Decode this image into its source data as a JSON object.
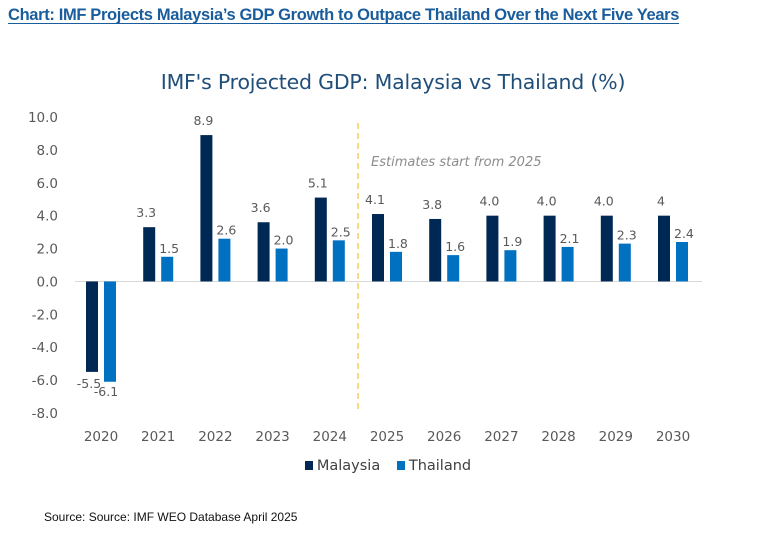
{
  "headline": "Chart: IMF Projects Malaysia’s GDP Growth to Outpace Thailand Over the Next Five Years",
  "source": "Source: Source: IMF WEO Database April 2025",
  "chart_data": {
    "type": "bar",
    "title": "IMF's Projected GDP: Malaysia vs Thailand (%)",
    "xlabel": "",
    "ylabel": "",
    "categories": [
      "2020",
      "2021",
      "2022",
      "2023",
      "2024",
      "2025",
      "2026",
      "2027",
      "2028",
      "2029",
      "2030"
    ],
    "series": [
      {
        "name": "Malaysia",
        "color": "#002855",
        "values": [
          -5.5,
          3.3,
          8.9,
          3.6,
          5.1,
          4.1,
          3.8,
          4.0,
          4.0,
          4.0,
          4.0
        ],
        "labels": [
          "-5.5",
          "3.3",
          "8.9",
          "3.6",
          "5.1",
          "4.1",
          "3.8",
          "4.0",
          "4.0",
          "4.0",
          "4"
        ]
      },
      {
        "name": "Thailand",
        "color": "#0070c0",
        "values": [
          -6.1,
          1.5,
          2.6,
          2.0,
          2.5,
          1.8,
          1.6,
          1.9,
          2.1,
          2.3,
          2.4
        ],
        "labels": [
          "-6.1",
          "1.5",
          "2.6",
          "2.0",
          "2.5",
          "1.8",
          "1.6",
          "1.9",
          "2.1",
          "2.3",
          "2.4"
        ]
      }
    ],
    "ylim": [
      -8,
      10
    ],
    "yticks": [
      "10.0",
      "8.0",
      "6.0",
      "4.0",
      "2.0",
      "0.0",
      "-2.0",
      "-4.0",
      "-6.0",
      "-8.0"
    ],
    "ytick_values": [
      10,
      8,
      6,
      4,
      2,
      0,
      -2,
      -4,
      -6,
      -8
    ],
    "grid": false,
    "legend": {
      "position": "bottom",
      "entries": [
        "Malaysia",
        "Thailand"
      ]
    },
    "annotations": [
      {
        "text": "Estimates start from 2025",
        "type": "vertical-dashed-line",
        "between": [
          "2024",
          "2025"
        ],
        "color": "#f2c12e"
      }
    ]
  }
}
